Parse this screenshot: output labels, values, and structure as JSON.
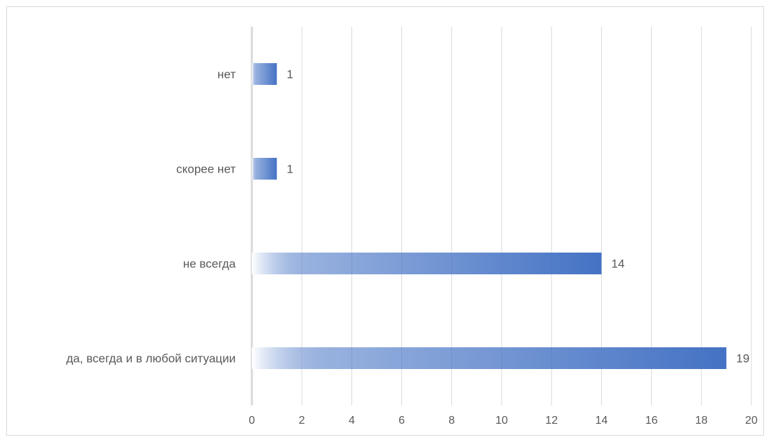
{
  "chart_data": {
    "type": "bar",
    "orientation": "horizontal",
    "categories": [
      "нет",
      "скорее нет",
      "не всегда",
      "да, всегда и в любой ситуации"
    ],
    "values": [
      1,
      1,
      14,
      19
    ],
    "data_labels": [
      "1",
      "1",
      "14",
      "19"
    ],
    "xlim": [
      0,
      20
    ],
    "x_ticks": [
      0,
      2,
      4,
      6,
      8,
      10,
      12,
      14,
      16,
      18,
      20
    ],
    "x_tick_labels": [
      "0",
      "2",
      "4",
      "6",
      "8",
      "10",
      "12",
      "14",
      "16",
      "18",
      "20"
    ],
    "grid": "vertical",
    "legend": "none",
    "colors": {
      "bar": "#4472c4",
      "bar_fade": "#ffffff",
      "gridline": "#d9d9d9",
      "axis_line": "#d9d9d9",
      "text": "#595959"
    }
  }
}
